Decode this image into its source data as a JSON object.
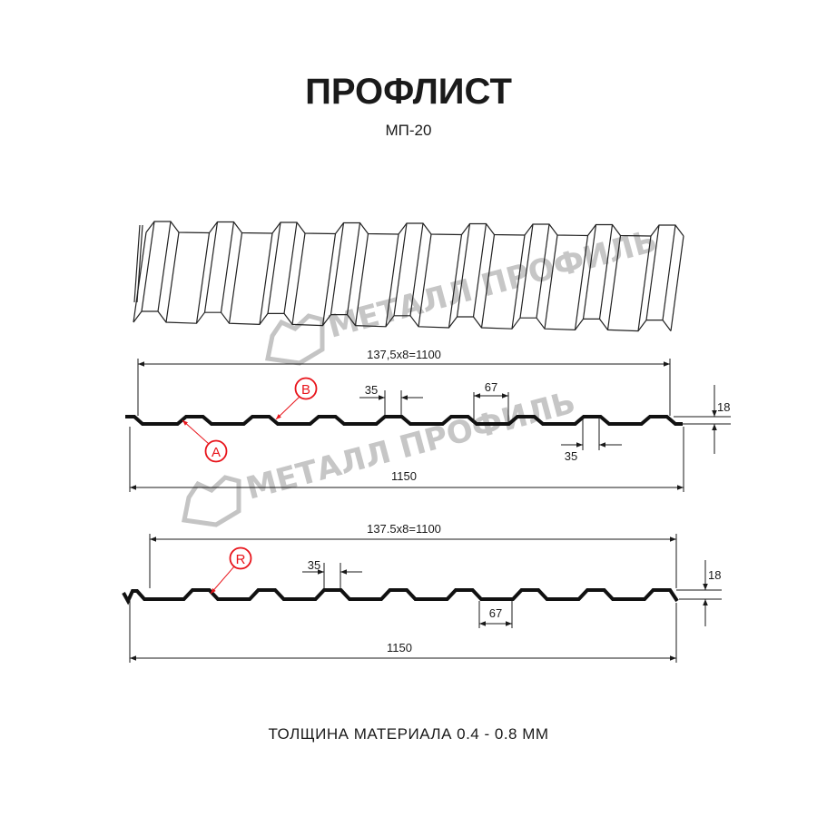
{
  "title": "ПРОФЛИСТ",
  "subtitle": "МП-20",
  "watermark": "МЕТАЛЛ ПРОФИЛЬ",
  "profile_a": {
    "pitch_label": "137,5x8=1100",
    "width_label": "1150",
    "crest_label": "35",
    "crest_label_bottom": "35",
    "valley_label": "67",
    "height_label": "18",
    "marker_a": "A",
    "marker_b": "B"
  },
  "profile_b": {
    "pitch_label": "137.5x8=1100",
    "width_label": "1150",
    "crest_label": "35",
    "valley_label": "67",
    "height_label": "18",
    "marker_r": "R"
  },
  "footer": "ТОЛЩИНА МАТЕРИАЛА 0.4 - 0.8 ММ",
  "colors": {
    "marker": "#e8141b",
    "line": "#111111",
    "watermark": "#b8b8b8"
  }
}
